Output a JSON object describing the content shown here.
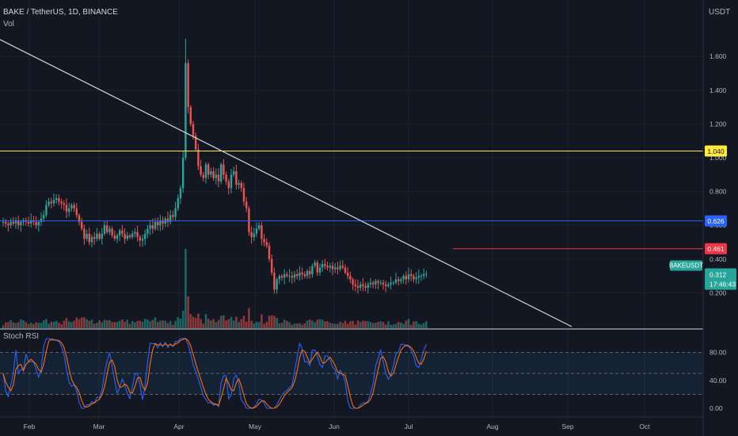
{
  "header": {
    "symbol": "BAKE / TetherUS, 1D, BINANCE",
    "volume_label": "Vol",
    "currency": "USDT",
    "indicator_title": "Stoch RSI"
  },
  "price_axis": {
    "ticks": [
      "0.200",
      "0.400",
      "0.600",
      "0.800",
      "1.000",
      "1.200",
      "1.400",
      "1.600"
    ],
    "tick_values": [
      0.2,
      0.4,
      0.6,
      0.8,
      1.0,
      1.2,
      1.4,
      1.6
    ]
  },
  "rsi_axis": {
    "ticks": [
      "0.00",
      "40.00",
      "80.00"
    ],
    "tick_values": [
      0,
      40,
      80
    ],
    "bands": [
      20,
      50,
      80
    ]
  },
  "time_axis": {
    "labels": [
      "Feb",
      "Mar",
      "Apr",
      "May",
      "Jun",
      "Jul",
      "Aug",
      "Sep",
      "Oct"
    ]
  },
  "levels": [
    {
      "price": 1.04,
      "label": "1.040",
      "color": "#ffeb3b",
      "text_color": "#131722"
    },
    {
      "price": 0.626,
      "label": "0.626",
      "color": "#2962ff",
      "text_color": "#ffffff"
    },
    {
      "price": 0.461,
      "label": "0.461",
      "color": "#f23645",
      "text_color": "#ffffff"
    }
  ],
  "last_price": {
    "ticker": "BAKEUSDT",
    "price": "0.312",
    "countdown": "17:46:43",
    "color": "#26a69a"
  },
  "colors": {
    "up": "#26a69a",
    "down": "#ef5350",
    "trendline": "#d1d4dc"
  },
  "chart_data": {
    "type": "candlestick",
    "symbol": "BAKE / TetherUS",
    "interval": "1D",
    "exchange": "BINANCE",
    "ylim": [
      0.0,
      1.75
    ],
    "trendline": {
      "start_price": 1.7,
      "end_price": 0.0
    },
    "horizontal_levels": [
      1.04,
      0.626,
      0.461
    ],
    "closes": [
      0.62,
      0.61,
      0.6,
      0.62,
      0.61,
      0.63,
      0.6,
      0.62,
      0.63,
      0.62,
      0.61,
      0.63,
      0.62,
      0.6,
      0.62,
      0.64,
      0.66,
      0.72,
      0.74,
      0.73,
      0.75,
      0.76,
      0.74,
      0.73,
      0.72,
      0.68,
      0.7,
      0.72,
      0.7,
      0.66,
      0.62,
      0.58,
      0.52,
      0.55,
      0.5,
      0.53,
      0.52,
      0.55,
      0.52,
      0.55,
      0.6,
      0.56,
      0.58,
      0.54,
      0.52,
      0.54,
      0.57,
      0.55,
      0.52,
      0.54,
      0.53,
      0.55,
      0.56,
      0.53,
      0.51,
      0.52,
      0.55,
      0.58,
      0.6,
      0.58,
      0.62,
      0.6,
      0.63,
      0.61,
      0.64,
      0.62,
      0.66,
      0.65,
      0.7,
      0.76,
      0.82,
      1.0,
      1.56,
      1.3,
      1.2,
      1.13,
      1.05,
      0.95,
      0.9,
      0.88,
      0.96,
      0.9,
      0.92,
      0.88,
      0.9,
      0.86,
      0.96,
      0.9,
      0.86,
      0.82,
      0.9,
      0.92,
      0.84,
      0.85,
      0.82,
      0.74,
      0.7,
      0.56,
      0.53,
      0.55,
      0.58,
      0.6,
      0.52,
      0.5,
      0.48,
      0.4,
      0.32,
      0.22,
      0.28,
      0.3,
      0.29,
      0.31,
      0.3,
      0.3,
      0.29,
      0.31,
      0.3,
      0.32,
      0.31,
      0.3,
      0.33,
      0.31,
      0.36,
      0.38,
      0.32,
      0.35,
      0.37,
      0.36,
      0.35,
      0.36,
      0.34,
      0.35,
      0.34,
      0.36,
      0.35,
      0.32,
      0.3,
      0.28,
      0.25,
      0.24,
      0.23,
      0.25,
      0.24,
      0.23,
      0.25,
      0.26,
      0.25,
      0.27,
      0.26,
      0.26,
      0.25,
      0.24,
      0.25,
      0.26,
      0.26,
      0.28,
      0.27,
      0.28,
      0.3,
      0.28,
      0.31,
      0.3,
      0.28,
      0.29,
      0.3,
      0.3,
      0.31,
      0.312
    ]
  }
}
